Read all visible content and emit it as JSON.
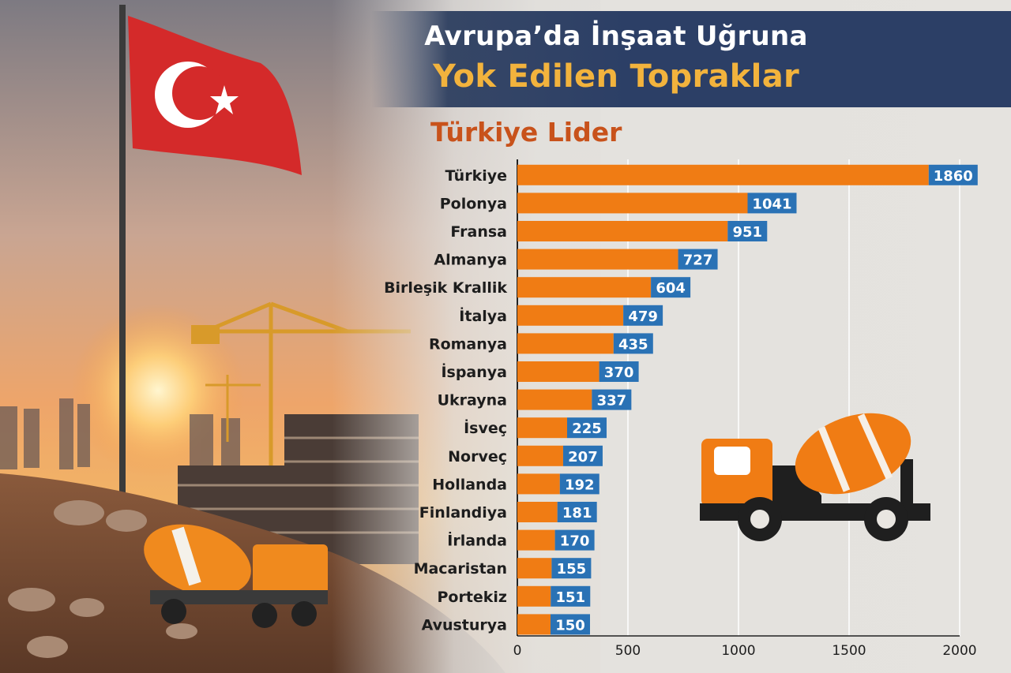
{
  "header": {
    "title_line1": "Avrupa’da İnşaat Uğruna",
    "title_line2": "Yok Edilen Topraklar",
    "subtitle": "Türkiye Lider"
  },
  "colors": {
    "bar": "#f07c14",
    "value_badge": "#2a72b5",
    "title_band": "#2c3f66",
    "title_highlight": "#f2b33d",
    "subtitle": "#c8521b",
    "flag_red": "#d42a2a"
  },
  "icons": [
    "turkish-flag-icon",
    "crane-icon",
    "construction-building-icon",
    "concrete-mixer-truck-icon"
  ],
  "chart_data": {
    "type": "bar",
    "orientation": "horizontal",
    "title": "Türkiye Lider",
    "categories": [
      "Türkiye",
      "Polonya",
      "Fransa",
      "Almanya",
      "Birleşik Krallik",
      "İtalya",
      "Romanya",
      "İspanya",
      "Ukrayna",
      "İsveç",
      "Norveç",
      "Hollanda",
      "Finlandiya",
      "İrlanda",
      "Macaristan",
      "Portekiz",
      "Avusturya"
    ],
    "values": [
      1860,
      1041,
      951,
      727,
      604,
      479,
      435,
      370,
      337,
      225,
      207,
      192,
      181,
      170,
      155,
      151,
      150
    ],
    "xlim": [
      0,
      2000
    ],
    "xticks": [
      0,
      500,
      1000,
      1500,
      2000
    ],
    "grid": true,
    "data_labels": true
  }
}
